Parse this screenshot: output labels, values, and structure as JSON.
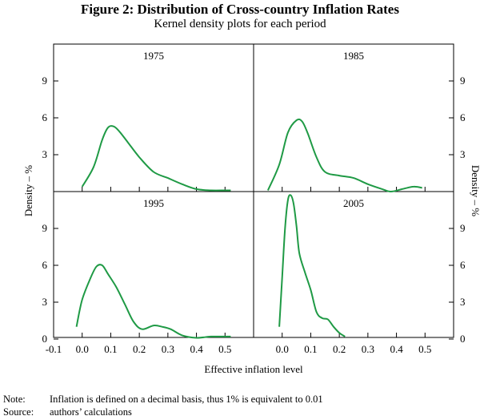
{
  "figure": {
    "title": "Figure 2: Distribution of Cross-country Inflation Rates",
    "subtitle": "Kernel density plots for each period"
  },
  "notes": [
    {
      "label": "Note:",
      "text": "Inflation is defined on a decimal basis, thus 1% is equivalent to 0.01"
    },
    {
      "label": "Source:",
      "text": "authors’ calculations"
    }
  ],
  "colors": {
    "line": "#1f9a45",
    "axis": "#000000"
  },
  "chart_data": {
    "type": "line",
    "xlabel": "Effective inflation level",
    "ylabel_left": "Density – %",
    "ylabel_right": "Density – %",
    "yticks": [
      0,
      3,
      6,
      9
    ],
    "ylim": [
      0,
      12
    ],
    "left_xlim": [
      -0.1,
      0.6
    ],
    "right_xlim": [
      -0.1,
      0.6
    ],
    "left_xticks": [
      "-0.1",
      "0.0",
      "0.1",
      "0.2",
      "0.3",
      "0.4",
      "0.5"
    ],
    "right_xticks": [
      "0.0",
      "0.1",
      "0.2",
      "0.3",
      "0.4",
      "0.5"
    ],
    "panels": [
      {
        "name": "1975",
        "x": [
          0.0,
          0.04,
          0.07,
          0.09,
          0.11,
          0.13,
          0.16,
          0.2,
          0.25,
          0.3,
          0.35,
          0.4,
          0.45,
          0.5,
          0.52
        ],
        "y": [
          0.4,
          2.0,
          4.2,
          5.2,
          5.3,
          4.9,
          4.0,
          2.8,
          1.6,
          1.1,
          0.6,
          0.2,
          0.1,
          0.1,
          0.1
        ]
      },
      {
        "name": "1985",
        "x": [
          -0.05,
          -0.01,
          0.02,
          0.05,
          0.07,
          0.09,
          0.12,
          0.15,
          0.2,
          0.25,
          0.3,
          0.35,
          0.38,
          0.42,
          0.46,
          0.49
        ],
        "y": [
          0.1,
          2.2,
          4.8,
          5.8,
          5.7,
          4.7,
          2.8,
          1.6,
          1.3,
          1.1,
          0.6,
          0.2,
          0.0,
          0.2,
          0.4,
          0.3
        ]
      },
      {
        "name": "1995",
        "x": [
          -0.02,
          0.0,
          0.03,
          0.05,
          0.07,
          0.09,
          0.12,
          0.15,
          0.18,
          0.21,
          0.25,
          0.28,
          0.31,
          0.35,
          0.4,
          0.45,
          0.5,
          0.52
        ],
        "y": [
          1.0,
          3.2,
          5.0,
          5.9,
          6.0,
          5.3,
          4.2,
          2.8,
          1.4,
          0.8,
          1.1,
          1.0,
          0.8,
          0.3,
          0.1,
          0.2,
          0.2,
          0.2
        ]
      },
      {
        "name": "2005",
        "x": [
          -0.01,
          0.0,
          0.01,
          0.02,
          0.03,
          0.04,
          0.05,
          0.06,
          0.08,
          0.1,
          0.12,
          0.14,
          0.16,
          0.18,
          0.2,
          0.22
        ],
        "y": [
          1.0,
          5.0,
          9.0,
          11.3,
          11.7,
          11.0,
          9.2,
          7.0,
          5.4,
          4.0,
          2.2,
          1.7,
          1.6,
          1.0,
          0.5,
          0.2
        ]
      }
    ]
  }
}
